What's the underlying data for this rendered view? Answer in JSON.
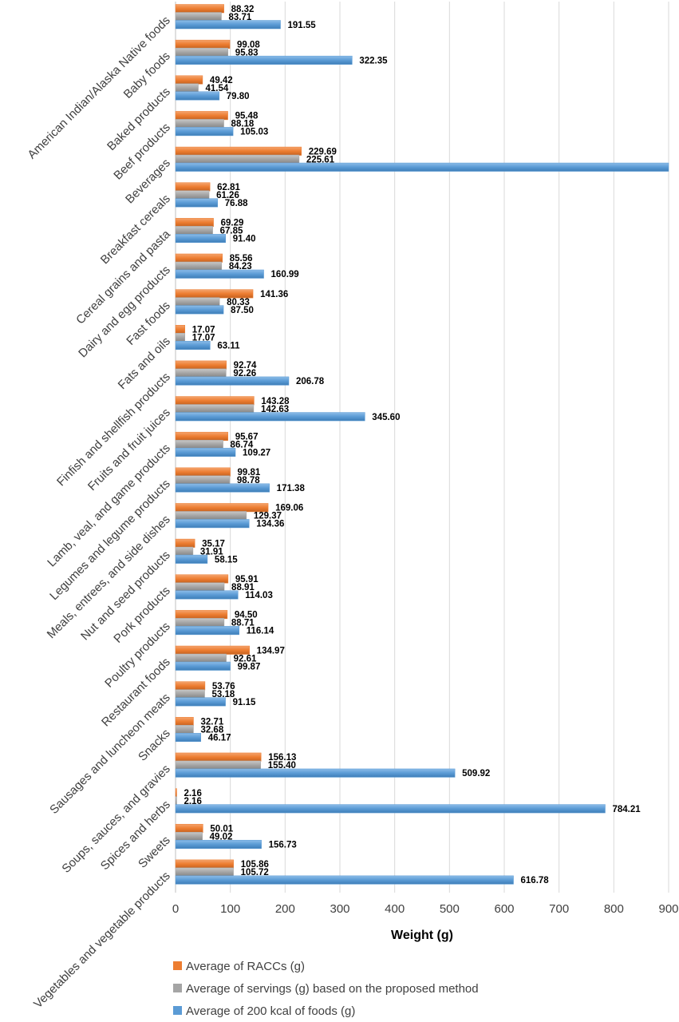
{
  "chart_data": {
    "type": "bar",
    "orientation": "horizontal",
    "title": "",
    "xlabel": "Weight (g)",
    "ylabel": "",
    "xlim": [
      0,
      900
    ],
    "xticks": [
      0,
      100,
      200,
      300,
      400,
      500,
      600,
      700,
      800,
      900
    ],
    "grid": true,
    "legend_position": "bottom-left",
    "categories": [
      "American Indian/Alaska Native foods",
      "Baby foods",
      "Baked products",
      "Beef products",
      "Beverages",
      "Breakfast cereals",
      "Cereal grains and pasta",
      "Dairy and egg products",
      "Fast foods",
      "Fats and oils",
      "Finfish and shellfish products",
      "Fruits and fruit juices",
      "Lamb, veal, and game products",
      "Legumes and legume products",
      "Meals, entrees, and side dishes",
      "Nut and seed products",
      "Pork products",
      "Poultry products",
      "Restaurant foods",
      "Sausages and luncheon meats",
      "Snacks",
      "Soups, sauces, and gravies",
      "Spices and herbs",
      "Sweets",
      "Vegetables and vegetable products"
    ],
    "series": [
      {
        "name": "Average of RACCs (g)",
        "color": "#ED7D31",
        "values": [
          88.32,
          99.08,
          49.42,
          95.48,
          229.69,
          62.81,
          69.29,
          85.56,
          141.36,
          17.07,
          92.74,
          143.28,
          95.67,
          99.81,
          169.06,
          35.17,
          95.91,
          94.5,
          134.97,
          53.76,
          32.71,
          156.13,
          2.16,
          50.01,
          105.86
        ],
        "labels": [
          "88.32",
          "99.08",
          "49.42",
          "95.48",
          "229.69",
          "62.81",
          "69.29",
          "85.56",
          "141.36",
          "17.07",
          "92.74",
          "143.28",
          "95.67",
          "99.81",
          "169.06",
          "35.17",
          "95.91",
          "94.50",
          "134.97",
          "53.76",
          "32.71",
          "156.13",
          "2.16",
          "50.01",
          "105.86"
        ]
      },
      {
        "name": "Average of servings (g) based on the proposed method",
        "color": "#A5A5A5",
        "values": [
          83.71,
          95.83,
          41.54,
          88.18,
          225.61,
          61.26,
          67.85,
          84.23,
          80.33,
          17.07,
          92.26,
          142.63,
          86.74,
          98.78,
          129.37,
          31.91,
          88.91,
          88.71,
          92.61,
          53.18,
          32.68,
          155.4,
          2.16,
          49.02,
          105.72
        ],
        "labels": [
          "83.71",
          "95.83",
          "41.54",
          "88.18",
          "225.61",
          "61.26",
          "67.85",
          "84.23",
          "80.33",
          "17.07",
          "92.26",
          "142.63",
          "86.74",
          "98.78",
          "129.37",
          "31.91",
          "88.91",
          "88.71",
          "92.61",
          "53.18",
          "32.68",
          "155.40",
          "2.16",
          "49.02",
          "105.72"
        ]
      },
      {
        "name": "Average of 200 kcal of foods (g)",
        "color": "#5B9BD5",
        "values": [
          191.55,
          322.35,
          79.8,
          105.03,
          900,
          76.88,
          91.4,
          160.99,
          87.5,
          63.11,
          206.78,
          345.6,
          109.27,
          171.38,
          134.36,
          58.15,
          114.03,
          116.14,
          99.87,
          91.15,
          46.17,
          509.92,
          784.21,
          156.73,
          616.78
        ],
        "labels": [
          "191.55",
          "322.35",
          "79.80",
          "105.03",
          "",
          "76.88",
          "91.40",
          "160.99",
          "87.50",
          "63.11",
          "206.78",
          "345.60",
          "109.27",
          "171.38",
          "134.36",
          "58.15",
          "114.03",
          "116.14",
          "99.87",
          "91.15",
          "46.17",
          "509.92",
          "784.21",
          "156.73",
          "616.78"
        ]
      }
    ]
  }
}
